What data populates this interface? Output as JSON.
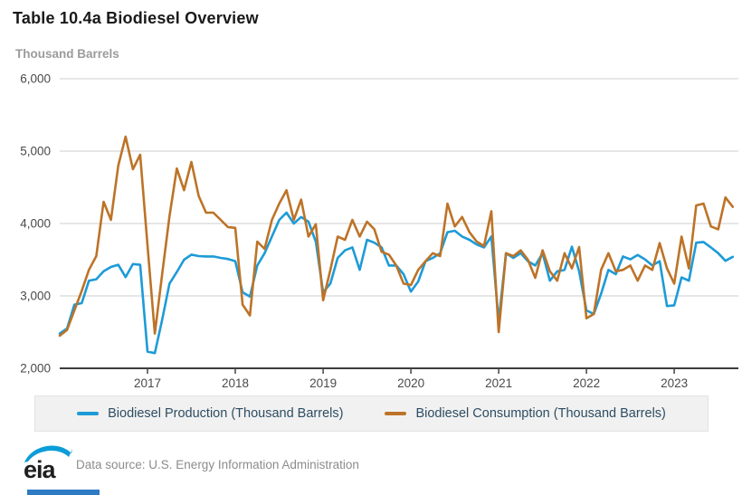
{
  "title": "Table 10.4a Biodiesel Overview",
  "units_label": "Thousand Barrels",
  "legend": {
    "production_label": "Biodiesel Production (Thousand Barrels)",
    "consumption_label": "Biodiesel Consumption (Thousand Barrels)"
  },
  "footer": {
    "logo_text": "eia",
    "data_source": "Data source: U.S. Energy Information Administration"
  },
  "colors": {
    "production": "#1d9bd7",
    "consumption": "#bd7327",
    "grid": "#cccccc",
    "axis": "#3c3c3c",
    "tick_label": "#4a4a4a",
    "legend_text": "#2d4d63",
    "logo_blue": "#0b9dd8"
  },
  "chart_data": {
    "type": "line",
    "title": "Table 10.4a Biodiesel Overview",
    "ylabel": "Thousand Barrels",
    "x_start": "2016-01",
    "x_end": "2023-09",
    "x_frequency": "monthly",
    "x_tick_labels": [
      "2017",
      "2018",
      "2019",
      "2020",
      "2021",
      "2022",
      "2023"
    ],
    "x_tick_month_indices": [
      12,
      24,
      36,
      48,
      60,
      72,
      84
    ],
    "ylim": [
      2000,
      6000
    ],
    "y_ticks": [
      2000,
      3000,
      4000,
      5000,
      6000
    ],
    "y_tick_labels": [
      "2,000",
      "3,000",
      "4,000",
      "5,000",
      "6,000"
    ],
    "grid": "horizontal",
    "legend_position": "bottom",
    "series": [
      {
        "name": "Biodiesel Production (Thousand Barrels)",
        "color": "#1d9bd7",
        "values": [
          2480,
          2550,
          2880,
          2900,
          3210,
          3230,
          3340,
          3400,
          3430,
          3260,
          3440,
          3430,
          2230,
          2210,
          2670,
          3170,
          3330,
          3500,
          3570,
          3550,
          3545,
          3545,
          3525,
          3510,
          3480,
          3050,
          2990,
          3420,
          3590,
          3820,
          4050,
          4150,
          4000,
          4090,
          4025,
          3750,
          3050,
          3170,
          3525,
          3630,
          3670,
          3360,
          3775,
          3735,
          3670,
          3420,
          3420,
          3300,
          3060,
          3200,
          3480,
          3525,
          3590,
          3880,
          3900,
          3820,
          3775,
          3710,
          3670,
          3820,
          2650,
          3590,
          3525,
          3590,
          3480,
          3420,
          3590,
          3210,
          3340,
          3360,
          3680,
          3340,
          2800,
          2750,
          3030,
          3360,
          3300,
          3545,
          3505,
          3565,
          3505,
          3420,
          3480,
          2860,
          2870,
          3255,
          3210,
          3735,
          3745,
          3670,
          3590,
          3485,
          3540
        ]
      },
      {
        "name": "Biodiesel Consumption (Thousand Barrels)",
        "color": "#bd7327",
        "values": [
          2450,
          2530,
          2800,
          3070,
          3360,
          3550,
          4300,
          4050,
          4800,
          5200,
          4750,
          4950,
          3700,
          2480,
          3300,
          4100,
          4760,
          4460,
          4850,
          4380,
          4150,
          4150,
          4050,
          3950,
          3940,
          2880,
          2730,
          3750,
          3650,
          4050,
          4275,
          4460,
          4050,
          4330,
          3820,
          3990,
          2940,
          3360,
          3820,
          3775,
          4050,
          3820,
          4025,
          3920,
          3610,
          3570,
          3420,
          3170,
          3150,
          3360,
          3480,
          3590,
          3550,
          4275,
          3960,
          4090,
          3880,
          3750,
          3690,
          4170,
          2500,
          3590,
          3550,
          3630,
          3500,
          3250,
          3630,
          3340,
          3210,
          3590,
          3380,
          3675,
          2690,
          2750,
          3360,
          3590,
          3340,
          3360,
          3420,
          3210,
          3420,
          3360,
          3730,
          3380,
          3170,
          3820,
          3380,
          4250,
          4275,
          3960,
          3920,
          4360,
          4230
        ]
      }
    ]
  }
}
